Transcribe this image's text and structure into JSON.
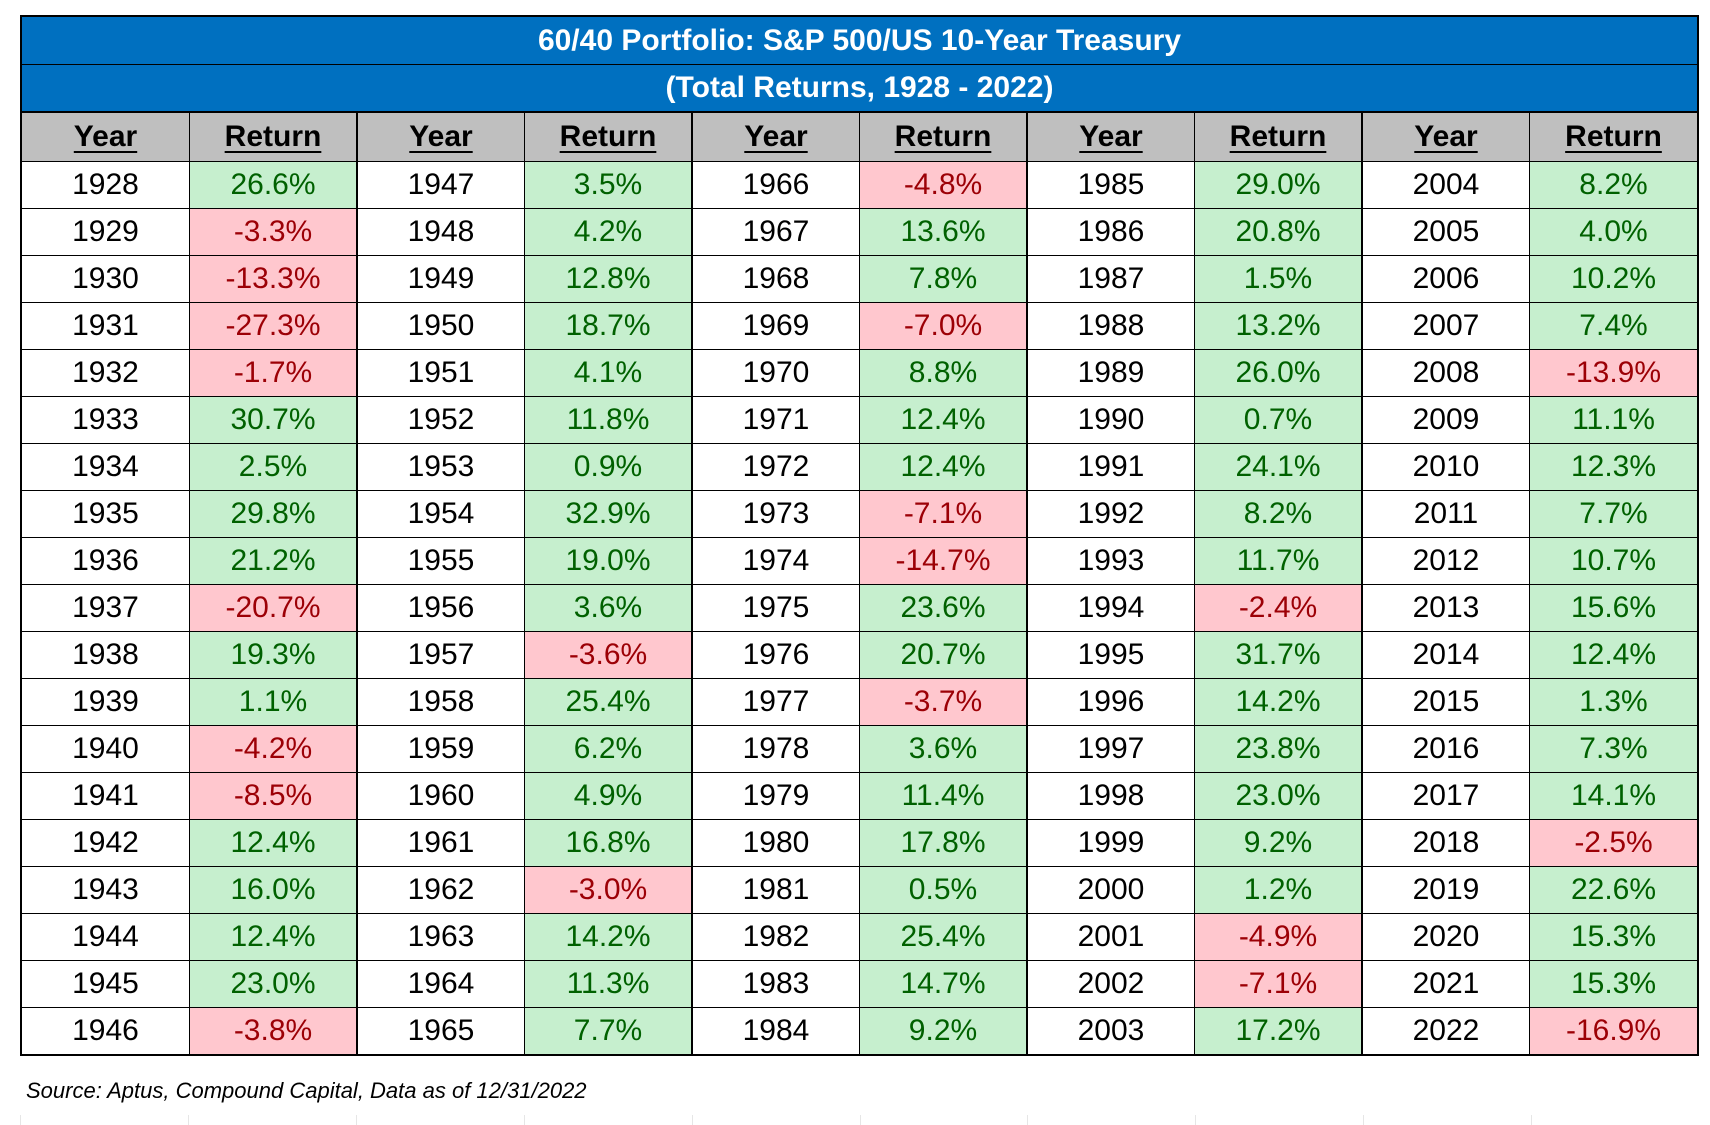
{
  "title": "60/40 Portfolio: S&P 500/US 10-Year Treasury",
  "subtitle": "(Total Returns, 1928 - 2022)",
  "headers": {
    "year": "Year",
    "return": "Return"
  },
  "colors": {
    "title_bg": "#0070C0",
    "header_bg": "#BFBFBF",
    "positive_bg": "#C6EFCE",
    "positive_text": "#006100",
    "negative_bg": "#FFC7CE",
    "negative_text": "#9C0006"
  },
  "groups": [
    [
      {
        "year": "1928",
        "return": "26.6%"
      },
      {
        "year": "1929",
        "return": "-3.3%"
      },
      {
        "year": "1930",
        "return": "-13.3%"
      },
      {
        "year": "1931",
        "return": "-27.3%"
      },
      {
        "year": "1932",
        "return": "-1.7%"
      },
      {
        "year": "1933",
        "return": "30.7%"
      },
      {
        "year": "1934",
        "return": "2.5%"
      },
      {
        "year": "1935",
        "return": "29.8%"
      },
      {
        "year": "1936",
        "return": "21.2%"
      },
      {
        "year": "1937",
        "return": "-20.7%"
      },
      {
        "year": "1938",
        "return": "19.3%"
      },
      {
        "year": "1939",
        "return": "1.1%"
      },
      {
        "year": "1940",
        "return": "-4.2%"
      },
      {
        "year": "1941",
        "return": "-8.5%"
      },
      {
        "year": "1942",
        "return": "12.4%"
      },
      {
        "year": "1943",
        "return": "16.0%"
      },
      {
        "year": "1944",
        "return": "12.4%"
      },
      {
        "year": "1945",
        "return": "23.0%"
      },
      {
        "year": "1946",
        "return": "-3.8%"
      }
    ],
    [
      {
        "year": "1947",
        "return": "3.5%"
      },
      {
        "year": "1948",
        "return": "4.2%"
      },
      {
        "year": "1949",
        "return": "12.8%"
      },
      {
        "year": "1950",
        "return": "18.7%"
      },
      {
        "year": "1951",
        "return": "4.1%"
      },
      {
        "year": "1952",
        "return": "11.8%"
      },
      {
        "year": "1953",
        "return": "0.9%"
      },
      {
        "year": "1954",
        "return": "32.9%"
      },
      {
        "year": "1955",
        "return": "19.0%"
      },
      {
        "year": "1956",
        "return": "3.6%"
      },
      {
        "year": "1957",
        "return": "-3.6%"
      },
      {
        "year": "1958",
        "return": "25.4%"
      },
      {
        "year": "1959",
        "return": "6.2%"
      },
      {
        "year": "1960",
        "return": "4.9%"
      },
      {
        "year": "1961",
        "return": "16.8%"
      },
      {
        "year": "1962",
        "return": "-3.0%"
      },
      {
        "year": "1963",
        "return": "14.2%"
      },
      {
        "year": "1964",
        "return": "11.3%"
      },
      {
        "year": "1965",
        "return": "7.7%"
      }
    ],
    [
      {
        "year": "1966",
        "return": "-4.8%"
      },
      {
        "year": "1967",
        "return": "13.6%"
      },
      {
        "year": "1968",
        "return": "7.8%"
      },
      {
        "year": "1969",
        "return": "-7.0%"
      },
      {
        "year": "1970",
        "return": "8.8%"
      },
      {
        "year": "1971",
        "return": "12.4%"
      },
      {
        "year": "1972",
        "return": "12.4%"
      },
      {
        "year": "1973",
        "return": "-7.1%"
      },
      {
        "year": "1974",
        "return": "-14.7%"
      },
      {
        "year": "1975",
        "return": "23.6%"
      },
      {
        "year": "1976",
        "return": "20.7%"
      },
      {
        "year": "1977",
        "return": "-3.7%"
      },
      {
        "year": "1978",
        "return": "3.6%"
      },
      {
        "year": "1979",
        "return": "11.4%"
      },
      {
        "year": "1980",
        "return": "17.8%"
      },
      {
        "year": "1981",
        "return": "0.5%"
      },
      {
        "year": "1982",
        "return": "25.4%"
      },
      {
        "year": "1983",
        "return": "14.7%"
      },
      {
        "year": "1984",
        "return": "9.2%"
      }
    ],
    [
      {
        "year": "1985",
        "return": "29.0%"
      },
      {
        "year": "1986",
        "return": "20.8%"
      },
      {
        "year": "1987",
        "return": "1.5%"
      },
      {
        "year": "1988",
        "return": "13.2%"
      },
      {
        "year": "1989",
        "return": "26.0%"
      },
      {
        "year": "1990",
        "return": "0.7%"
      },
      {
        "year": "1991",
        "return": "24.1%"
      },
      {
        "year": "1992",
        "return": "8.2%"
      },
      {
        "year": "1993",
        "return": "11.7%"
      },
      {
        "year": "1994",
        "return": "-2.4%"
      },
      {
        "year": "1995",
        "return": "31.7%"
      },
      {
        "year": "1996",
        "return": "14.2%"
      },
      {
        "year": "1997",
        "return": "23.8%"
      },
      {
        "year": "1998",
        "return": "23.0%"
      },
      {
        "year": "1999",
        "return": "9.2%"
      },
      {
        "year": "2000",
        "return": "1.2%"
      },
      {
        "year": "2001",
        "return": "-4.9%"
      },
      {
        "year": "2002",
        "return": "-7.1%"
      },
      {
        "year": "2003",
        "return": "17.2%"
      }
    ],
    [
      {
        "year": "2004",
        "return": "8.2%"
      },
      {
        "year": "2005",
        "return": "4.0%"
      },
      {
        "year": "2006",
        "return": "10.2%"
      },
      {
        "year": "2007",
        "return": "7.4%"
      },
      {
        "year": "2008",
        "return": "-13.9%"
      },
      {
        "year": "2009",
        "return": "11.1%"
      },
      {
        "year": "2010",
        "return": "12.3%"
      },
      {
        "year": "2011",
        "return": "7.7%"
      },
      {
        "year": "2012",
        "return": "10.7%"
      },
      {
        "year": "2013",
        "return": "15.6%"
      },
      {
        "year": "2014",
        "return": "12.4%"
      },
      {
        "year": "2015",
        "return": "1.3%"
      },
      {
        "year": "2016",
        "return": "7.3%"
      },
      {
        "year": "2017",
        "return": "14.1%"
      },
      {
        "year": "2018",
        "return": "-2.5%"
      },
      {
        "year": "2019",
        "return": "22.6%"
      },
      {
        "year": "2020",
        "return": "15.3%"
      },
      {
        "year": "2021",
        "return": "15.3%"
      },
      {
        "year": "2022",
        "return": "-16.9%"
      }
    ]
  ],
  "source": "Source: Aptus, Compound Capital, Data as of 12/31/2022"
}
